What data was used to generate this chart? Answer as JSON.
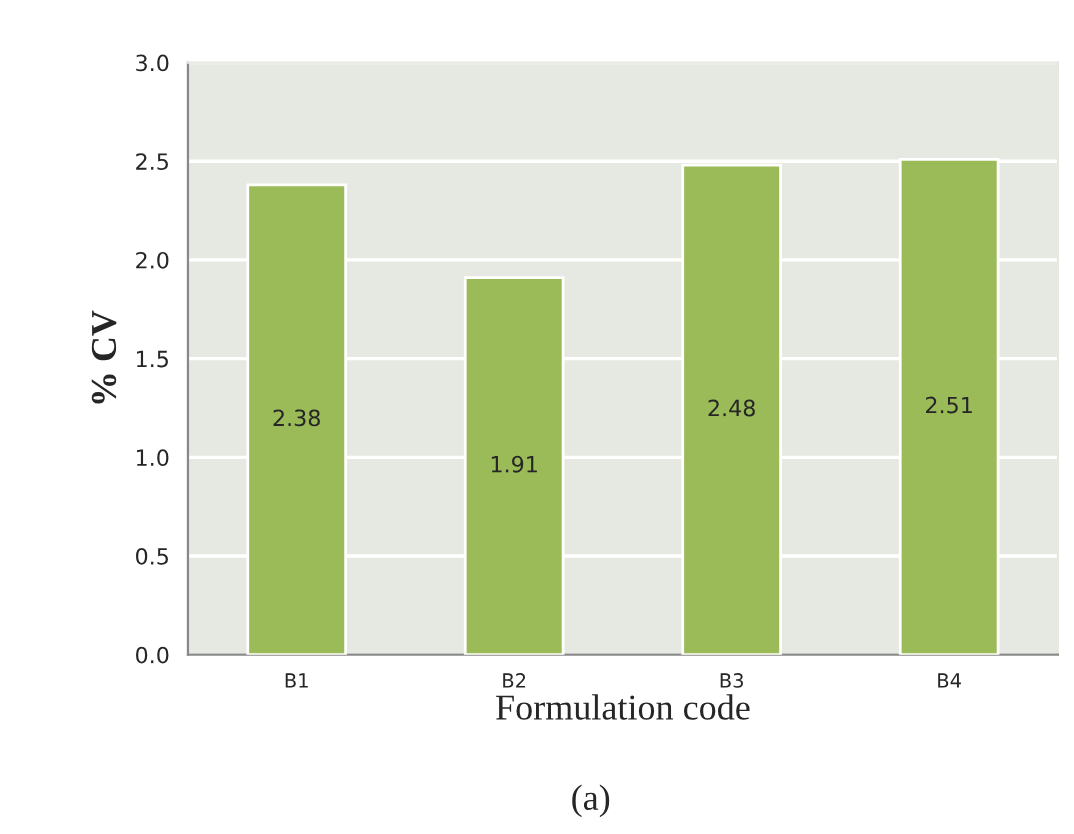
{
  "chart_data": {
    "type": "bar",
    "categories": [
      "B1",
      "B2",
      "B3",
      "B4"
    ],
    "values": [
      2.38,
      1.91,
      2.48,
      2.51
    ],
    "color": "#9bbb59",
    "ylim": [
      0,
      3
    ],
    "yticks": [
      {
        "value": 0,
        "label": "0.0"
      },
      {
        "value": 0.5,
        "label": "0.5"
      },
      {
        "value": 1,
        "label": "1.0"
      },
      {
        "value": 1.5,
        "label": "1.5"
      },
      {
        "value": 2,
        "label": "2.0"
      },
      {
        "value": 2.5,
        "label": "2.5"
      },
      {
        "value": 3,
        "label": "3.0"
      }
    ],
    "grid": "y",
    "data_labels": true,
    "xlabel": "Formulation code",
    "ylabel": "% CV",
    "annotations": [
      "(a)"
    ]
  }
}
